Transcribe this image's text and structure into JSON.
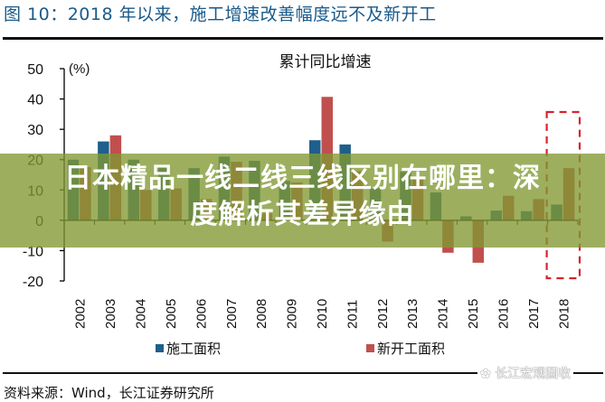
{
  "figure": {
    "title": "图 10：2018 年以来，施工增速改善幅度远不及新开工",
    "source": "资料来源：Wind，长江证券研究所",
    "watermark": "长江宏观固收"
  },
  "overlay": {
    "line1": "日本精品一线二线三线区别在哪里：深",
    "line2": "度解析其差异缘由"
  },
  "colors": {
    "series_construction": "#1F5F8B",
    "series_new_start": "#C0504D",
    "highlight_box": "#D9232B",
    "title_blue": "#1a5a8a"
  },
  "chart_data": {
    "type": "bar",
    "title": "累计同比增速",
    "xlabel": "",
    "ylabel": "(%)",
    "ylim": [
      -20,
      50
    ],
    "yticks": [
      -20,
      -10,
      0,
      10,
      20,
      30,
      40,
      50
    ],
    "grid": false,
    "legend_position": "bottom",
    "categories": [
      "2002",
      "2003",
      "2004",
      "2005",
      "2006",
      "2007",
      "2008",
      "2009",
      "2010",
      "2011",
      "2012",
      "2013",
      "2014",
      "2015",
      "2016",
      "2017",
      "2018"
    ],
    "series": [
      {
        "name": "施工面积",
        "values": [
          20.0,
          26.0,
          20.0,
          18.0,
          17.2,
          21.0,
          19.6,
          13.0,
          26.4,
          25.0,
          10.5,
          16.0,
          9.2,
          1.3,
          3.2,
          3.0,
          5.2
        ]
      },
      {
        "name": "新开工面积",
        "values": [
          17.5,
          28.0,
          10.0,
          10.5,
          7.0,
          19.3,
          2.3,
          12.5,
          40.7,
          16.2,
          -7.0,
          13.5,
          -10.7,
          -14.0,
          8.1,
          7.0,
          17.2
        ]
      }
    ],
    "annotations": [
      {
        "type": "dashed-box",
        "target_category": "2018",
        "color": "#D9232B"
      }
    ]
  }
}
